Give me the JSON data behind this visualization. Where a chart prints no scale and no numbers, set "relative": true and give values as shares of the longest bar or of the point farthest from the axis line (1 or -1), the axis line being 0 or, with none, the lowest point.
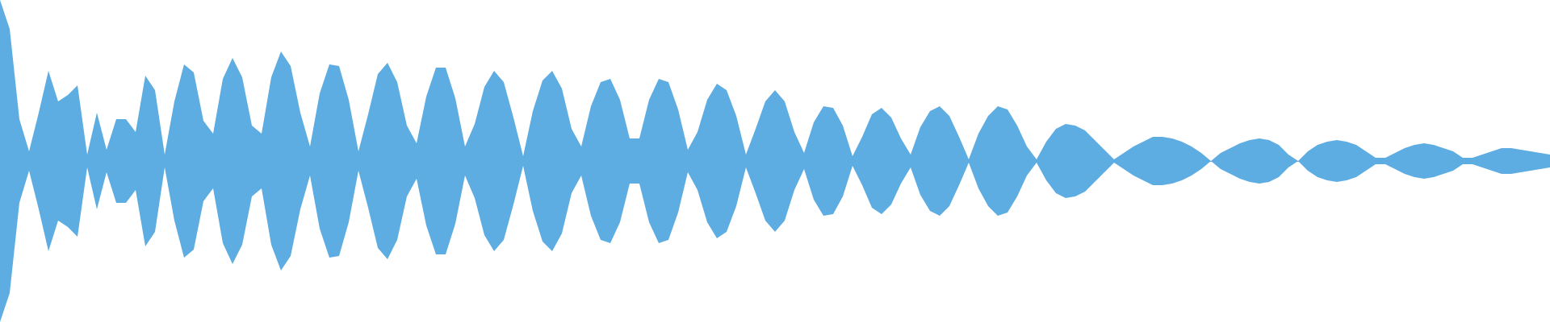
{
  "chart_data": {
    "type": "area",
    "relative": true,
    "legend": false,
    "categories": [
      null,
      null,
      null,
      null,
      null,
      null,
      null,
      null,
      null,
      null,
      null,
      null,
      null,
      null,
      null,
      null,
      null,
      null,
      null,
      null,
      null,
      null,
      null,
      null,
      null,
      null,
      null,
      null,
      null,
      null,
      null,
      null,
      null,
      null,
      null,
      null,
      null,
      null,
      null,
      null,
      null,
      null,
      null,
      null,
      null,
      null,
      null,
      null,
      null,
      null,
      null,
      null,
      null,
      null,
      null,
      null,
      null,
      null,
      null,
      null,
      null,
      null,
      null,
      null,
      null,
      null,
      null,
      null,
      null,
      null,
      null,
      null,
      null,
      null,
      null,
      null,
      null,
      null,
      null,
      null,
      null,
      null,
      null,
      null,
      null,
      null,
      null,
      null,
      null,
      null,
      null,
      null,
      null,
      null,
      null,
      null,
      null,
      null,
      null,
      null,
      null,
      null,
      null,
      null,
      null,
      null,
      null,
      null,
      null,
      null,
      null,
      null,
      null,
      null,
      null,
      null,
      null,
      null,
      null,
      null,
      null,
      null,
      null,
      null,
      null,
      null,
      null,
      null,
      null,
      null,
      null,
      null,
      null,
      null,
      null,
      null,
      null,
      null,
      null,
      null,
      null,
      null,
      null,
      null,
      null,
      null,
      null,
      null,
      null,
      null,
      null,
      null,
      null,
      null,
      null,
      null,
      null,
      null,
      null,
      null,
      null
    ],
    "series": [
      {
        "color": "#5dade2",
        "values": [
          1.0,
          0.82,
          0.26,
          0.06,
          0.3,
          0.56,
          0.37,
          0.41,
          0.47,
          0.04,
          0.3,
          0.07,
          0.26,
          0.26,
          0.18,
          0.53,
          0.44,
          0.04,
          0.37,
          0.6,
          0.55,
          0.25,
          0.17,
          0.51,
          0.64,
          0.52,
          0.22,
          0.17,
          0.52,
          0.68,
          0.59,
          0.3,
          0.09,
          0.42,
          0.6,
          0.59,
          0.38,
          0.06,
          0.29,
          0.54,
          0.61,
          0.49,
          0.22,
          0.11,
          0.4,
          0.58,
          0.58,
          0.39,
          0.09,
          0.23,
          0.46,
          0.56,
          0.49,
          0.27,
          0.03,
          0.31,
          0.5,
          0.56,
          0.45,
          0.2,
          0.09,
          0.34,
          0.49,
          0.51,
          0.38,
          0.14,
          0.14,
          0.38,
          0.51,
          0.49,
          0.32,
          0.07,
          0.18,
          0.38,
          0.48,
          0.44,
          0.28,
          0.04,
          0.2,
          0.37,
          0.44,
          0.37,
          0.18,
          0.05,
          0.24,
          0.34,
          0.33,
          0.22,
          0.03,
          0.15,
          0.29,
          0.33,
          0.27,
          0.14,
          0.04,
          0.21,
          0.31,
          0.34,
          0.28,
          0.15,
          0.01,
          0.17,
          0.28,
          0.34,
          0.32,
          0.22,
          0.09,
          0.01,
          0.12,
          0.2,
          0.23,
          0.22,
          0.19,
          0.13,
          0.07,
          0.01,
          0.05,
          0.09,
          0.12,
          0.15,
          0.15,
          0.14,
          0.12,
          0.09,
          0.05,
          0.0,
          0.05,
          0.08,
          0.11,
          0.13,
          0.14,
          0.13,
          0.1,
          0.04,
          0.0,
          0.06,
          0.1,
          0.12,
          0.13,
          0.12,
          0.1,
          0.06,
          0.02,
          0.02,
          0.05,
          0.08,
          0.1,
          0.11,
          0.1,
          0.08,
          0.06,
          0.02,
          0.02,
          0.04,
          0.06,
          0.08,
          0.08,
          0.07,
          0.06,
          0.05,
          0.04
        ]
      },
      {
        "color": "#5dade2",
        "values": [
          -1.0,
          -0.82,
          -0.26,
          -0.06,
          -0.3,
          -0.56,
          -0.37,
          -0.41,
          -0.47,
          -0.04,
          -0.3,
          -0.07,
          -0.26,
          -0.26,
          -0.18,
          -0.53,
          -0.44,
          -0.04,
          -0.37,
          -0.6,
          -0.55,
          -0.25,
          -0.17,
          -0.51,
          -0.64,
          -0.52,
          -0.22,
          -0.17,
          -0.52,
          -0.68,
          -0.59,
          -0.3,
          -0.09,
          -0.42,
          -0.6,
          -0.59,
          -0.38,
          -0.06,
          -0.29,
          -0.54,
          -0.61,
          -0.49,
          -0.22,
          -0.11,
          -0.4,
          -0.58,
          -0.58,
          -0.39,
          -0.09,
          -0.23,
          -0.46,
          -0.56,
          -0.49,
          -0.27,
          -0.03,
          -0.31,
          -0.5,
          -0.56,
          -0.45,
          -0.2,
          -0.09,
          -0.34,
          -0.49,
          -0.51,
          -0.38,
          -0.14,
          -0.14,
          -0.38,
          -0.51,
          -0.49,
          -0.32,
          -0.07,
          -0.18,
          -0.38,
          -0.48,
          -0.44,
          -0.28,
          -0.04,
          -0.2,
          -0.37,
          -0.44,
          -0.37,
          -0.18,
          -0.05,
          -0.24,
          -0.34,
          -0.33,
          -0.22,
          -0.03,
          -0.15,
          -0.29,
          -0.33,
          -0.27,
          -0.14,
          -0.04,
          -0.21,
          -0.31,
          -0.34,
          -0.28,
          -0.15,
          -0.01,
          -0.17,
          -0.28,
          -0.34,
          -0.32,
          -0.22,
          -0.09,
          -0.01,
          -0.12,
          -0.2,
          -0.23,
          -0.22,
          -0.19,
          -0.13,
          -0.07,
          -0.01,
          -0.05,
          -0.09,
          -0.12,
          -0.15,
          -0.15,
          -0.14,
          -0.12,
          -0.09,
          -0.05,
          0.0,
          -0.05,
          -0.08,
          -0.11,
          -0.13,
          -0.14,
          -0.13,
          -0.1,
          -0.04,
          0.0,
          -0.06,
          -0.1,
          -0.12,
          -0.13,
          -0.12,
          -0.1,
          -0.06,
          -0.02,
          -0.02,
          -0.05,
          -0.08,
          -0.1,
          -0.11,
          -0.1,
          -0.08,
          -0.06,
          -0.02,
          -0.02,
          -0.04,
          -0.06,
          -0.08,
          -0.08,
          -0.07,
          -0.06,
          -0.05,
          -0.04
        ]
      }
    ]
  }
}
